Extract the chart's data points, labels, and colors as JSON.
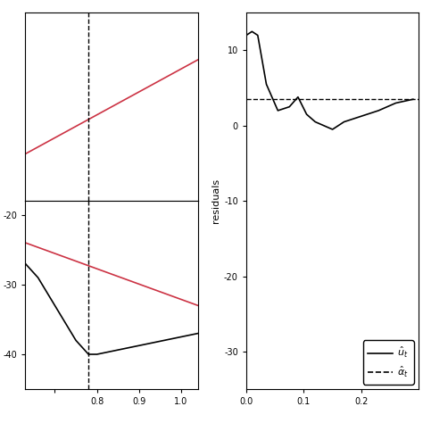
{
  "left_top": {
    "xlim": [
      0.63,
      1.04
    ],
    "ylim": [
      0,
      1
    ],
    "red_line_x": [
      0.63,
      1.04
    ],
    "red_line_y": [
      0.25,
      0.75
    ],
    "vline_x": 0.78,
    "yticks": [],
    "xticks": []
  },
  "left_bottom": {
    "xlim": [
      0.63,
      1.04
    ],
    "ylim": [
      -45,
      -18
    ],
    "red_line_x": [
      0.63,
      1.04
    ],
    "red_line_y": [
      -24,
      -33
    ],
    "black_x": [
      0.63,
      0.66,
      0.69,
      0.72,
      0.75,
      0.78,
      0.8,
      0.84,
      0.88,
      0.92,
      0.96,
      1.0,
      1.04
    ],
    "black_y": [
      -27,
      -29,
      -32,
      -35,
      -38,
      -40,
      -40,
      -39.5,
      -39,
      -38.5,
      -38,
      -37.5,
      -37
    ],
    "vline_x": 0.78,
    "yticks": [
      -20,
      -30,
      -40
    ],
    "xticks": [
      0.7,
      0.8,
      0.9,
      1.0
    ],
    "xticklabels": [
      "",
      "0.8",
      "0.9",
      "1.0"
    ]
  },
  "right": {
    "xlim": [
      0.0,
      0.3
    ],
    "ylim": [
      -35,
      15
    ],
    "ylabel": "residuals",
    "yticks": [
      10,
      0,
      -10,
      -20,
      -30
    ],
    "xticks": [
      0.0,
      0.1,
      0.2
    ],
    "xticklabels": [
      "0.0",
      "0.1",
      "0.2"
    ],
    "hline_y": 3.5,
    "black_x": [
      0.0,
      0.01,
      0.02,
      0.035,
      0.055,
      0.075,
      0.09,
      0.105,
      0.12,
      0.135,
      0.15,
      0.17,
      0.19,
      0.21,
      0.23,
      0.26,
      0.29
    ],
    "black_y": [
      12.0,
      12.5,
      12.0,
      5.5,
      2.0,
      2.5,
      3.8,
      1.5,
      0.5,
      0.0,
      -0.5,
      0.5,
      1.0,
      1.5,
      2.0,
      3.0,
      3.5
    ]
  },
  "red_color": "#cc3344",
  "black_color": "#000000",
  "bg_color": "#ffffff",
  "legend_solid_label": "$\\hat{u}_t$",
  "legend_dashed_label": "$\\hat{\\alpha}_t$"
}
